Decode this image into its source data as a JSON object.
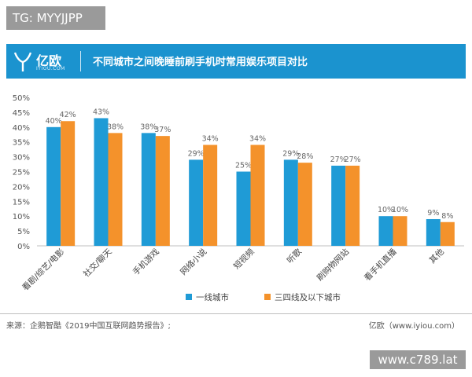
{
  "watermark_top": "TG: MYYJJPP",
  "watermark_bottom": "www.c789.lat",
  "header": {
    "logo_text": "亿欧",
    "logo_sub": "IYIOU.COM",
    "title": "不同城市之间晚睡前刷手机时常用娱乐项目对比"
  },
  "footer": {
    "source": "来源：企鹅智酷《2019中国互联网趋势报告》;",
    "credit": "亿欧（www.iyiou.com）"
  },
  "colors": {
    "series1": "#1f9bd6",
    "series2": "#f4922b",
    "header": "#1b93cf"
  },
  "chart_data": {
    "type": "bar",
    "title": "",
    "xlabel": "",
    "ylabel": "",
    "ylim": [
      0,
      50
    ],
    "yticks": [
      "0%",
      "5%",
      "10%",
      "15%",
      "20%",
      "25%",
      "30%",
      "35%",
      "40%",
      "45%",
      "50%"
    ],
    "categories": [
      "看剧/综艺/电影",
      "社交/聊天",
      "手机游戏",
      "网络小说",
      "短视频",
      "听歌",
      "刷购物网站",
      "看手机直播",
      "其他"
    ],
    "series": [
      {
        "name": "一线城市",
        "values": [
          40,
          43,
          38,
          29,
          25,
          29,
          27,
          10,
          9
        ],
        "labels": [
          "40%",
          "43%",
          "38%",
          "29%",
          "25%",
          "29%",
          "27%",
          "10%",
          "9%"
        ]
      },
      {
        "name": "三四线及以下城市",
        "values": [
          42,
          38,
          37,
          34,
          34,
          28,
          27,
          10,
          8
        ],
        "labels": [
          "42%",
          "38%",
          "37%",
          "34%",
          "34%",
          "28%",
          "27%",
          "10%",
          "8%"
        ]
      }
    ],
    "legend_position": "bottom-right",
    "grid": false
  }
}
